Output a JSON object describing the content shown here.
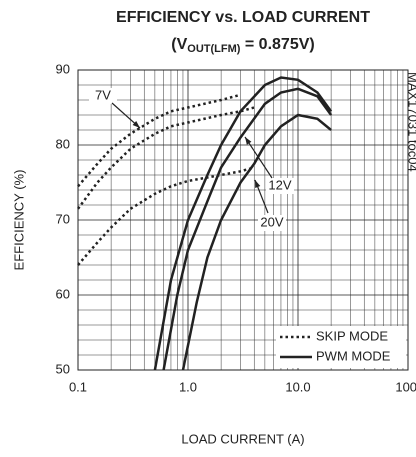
{
  "chart_data": {
    "type": "line",
    "title": "EFFICIENCY vs. LOAD CURRENT",
    "subtitle_parts": [
      "(V",
      "OUT(LFM)",
      " = 0.875V)"
    ],
    "x_label": "LOAD CURRENT (A)",
    "y_label": "EFFICIENCY (%)",
    "note": "MAX17031 toc04",
    "x_scale": "log",
    "xlim": [
      0.1,
      100
    ],
    "ylim": [
      50,
      90
    ],
    "xticks": [
      0.1,
      {
        "value": 1,
        "label": "1.0"
      },
      {
        "value": 10,
        "label": "10.0"
      },
      {
        "value": 100,
        "label": "100."
      }
    ],
    "yticks": [
      50,
      60,
      70,
      80,
      90
    ],
    "x_minor_ticks": [
      0.2,
      0.3,
      0.4,
      0.5,
      0.6,
      0.7,
      0.8,
      0.9,
      2,
      3,
      4,
      5,
      6,
      7,
      8,
      9,
      20,
      30,
      40,
      50,
      60,
      70,
      80,
      90
    ],
    "y_minor_ticks": [
      52,
      54,
      56,
      58,
      62,
      64,
      66,
      68,
      72,
      74,
      76,
      78,
      82,
      84,
      86,
      88
    ],
    "grid": true,
    "legend": [
      {
        "name": "SKIP MODE",
        "style": "dotted"
      },
      {
        "name": "PWM MODE",
        "style": "solid"
      }
    ],
    "legend_position": "lower right",
    "annotations": [
      "7V",
      "12V",
      "20V"
    ],
    "series": [
      {
        "style": "dotted",
        "color": "#222",
        "x": [
          0.1,
          0.15,
          0.2,
          0.3,
          0.5,
          0.7,
          1,
          2,
          3
        ],
        "values": [
          74.5,
          77.5,
          79.5,
          81.5,
          83.5,
          84.5,
          85,
          86,
          86.7
        ]
      },
      {
        "style": "dotted",
        "color": "#222",
        "x": [
          0.1,
          0.15,
          0.2,
          0.3,
          0.5,
          0.7,
          1,
          2,
          3,
          4
        ],
        "values": [
          71.5,
          75,
          77,
          79.5,
          81.5,
          82.5,
          83,
          84,
          84.5,
          85
        ]
      },
      {
        "style": "dotted",
        "color": "#222",
        "x": [
          0.1,
          0.15,
          0.2,
          0.3,
          0.5,
          0.7,
          1,
          2,
          3,
          4
        ],
        "values": [
          64,
          67,
          69,
          71.5,
          73.5,
          74.5,
          75.2,
          76,
          76.5,
          77
        ]
      },
      {
        "style": "solid",
        "color": "#222",
        "x": [
          0.5,
          0.7,
          1,
          1.5,
          2,
          3,
          5,
          7,
          10,
          15,
          20
        ],
        "values": [
          50,
          62,
          70,
          76,
          80,
          84.5,
          88,
          89,
          88.7,
          87,
          84.5
        ]
      },
      {
        "style": "solid",
        "color": "#222",
        "x": [
          0.6,
          0.8,
          1,
          1.5,
          2,
          3,
          5,
          7,
          10,
          15,
          20
        ],
        "values": [
          50,
          60,
          66,
          72.5,
          77,
          81,
          85.5,
          87,
          87.5,
          86.5,
          84
        ]
      },
      {
        "style": "solid",
        "color": "#222",
        "x": [
          0.9,
          1.2,
          1.5,
          2,
          3,
          4,
          5,
          7,
          10,
          15,
          20
        ],
        "values": [
          50,
          59,
          65,
          70,
          75,
          77.5,
          80,
          82.5,
          84,
          83.5,
          82
        ]
      }
    ]
  }
}
